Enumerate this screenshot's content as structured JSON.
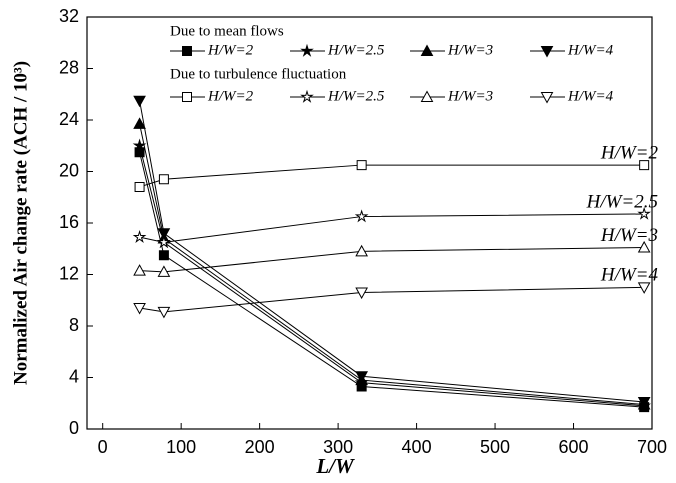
{
  "chart_data": {
    "type": "line",
    "xlabel": "L/W",
    "ylabel": "Normalized Air change rate (ACH / 10³)",
    "xlim": [
      -20,
      700
    ],
    "xticks": [
      0,
      100,
      200,
      300,
      400,
      500,
      600,
      700
    ],
    "ylim": [
      0,
      32
    ],
    "yticks": [
      0,
      4,
      8,
      12,
      16,
      20,
      24,
      28,
      32
    ],
    "legend_titles": [
      "Due to mean flows",
      "Due to turbulence fluctuation"
    ],
    "x": [
      47,
      78,
      330,
      690
    ],
    "series": [
      {
        "name": "H/W=2",
        "color": "#000000",
        "marker": "square",
        "filled": true,
        "values": [
          21.5,
          13.5,
          3.3,
          1.7
        ]
      },
      {
        "name": "H/W=2.5",
        "color": "#000000",
        "marker": "star",
        "filled": true,
        "values": [
          22,
          14.5,
          3.6,
          1.8
        ]
      },
      {
        "name": "H/W=3",
        "color": "#000000",
        "marker": "triangle-up",
        "filled": true,
        "values": [
          23.7,
          14.8,
          3.8,
          1.9
        ]
      },
      {
        "name": "H/W=4",
        "color": "#000000",
        "marker": "triangle-down",
        "filled": true,
        "values": [
          25.5,
          15.2,
          4.1,
          2.1
        ]
      },
      {
        "name": "H/W=2",
        "color": "#000000",
        "marker": "square",
        "filled": false,
        "values": [
          18.8,
          19.4,
          20.5,
          20.5
        ]
      },
      {
        "name": "H/W=2.5",
        "color": "#000000",
        "marker": "star",
        "filled": false,
        "values": [
          14.9,
          14.5,
          16.5,
          16.7
        ]
      },
      {
        "name": "H/W=3",
        "color": "#000000",
        "marker": "triangle-up",
        "filled": false,
        "values": [
          12.3,
          12.2,
          13.8,
          14.1
        ]
      },
      {
        "name": "H/W=4",
        "color": "#000000",
        "marker": "triangle-down",
        "filled": false,
        "values": [
          9.4,
          9.1,
          10.6,
          11.0
        ]
      }
    ],
    "annotations": [
      "H/W=2",
      "H/W=2.5",
      "H/W=3",
      "H/W=4"
    ]
  }
}
